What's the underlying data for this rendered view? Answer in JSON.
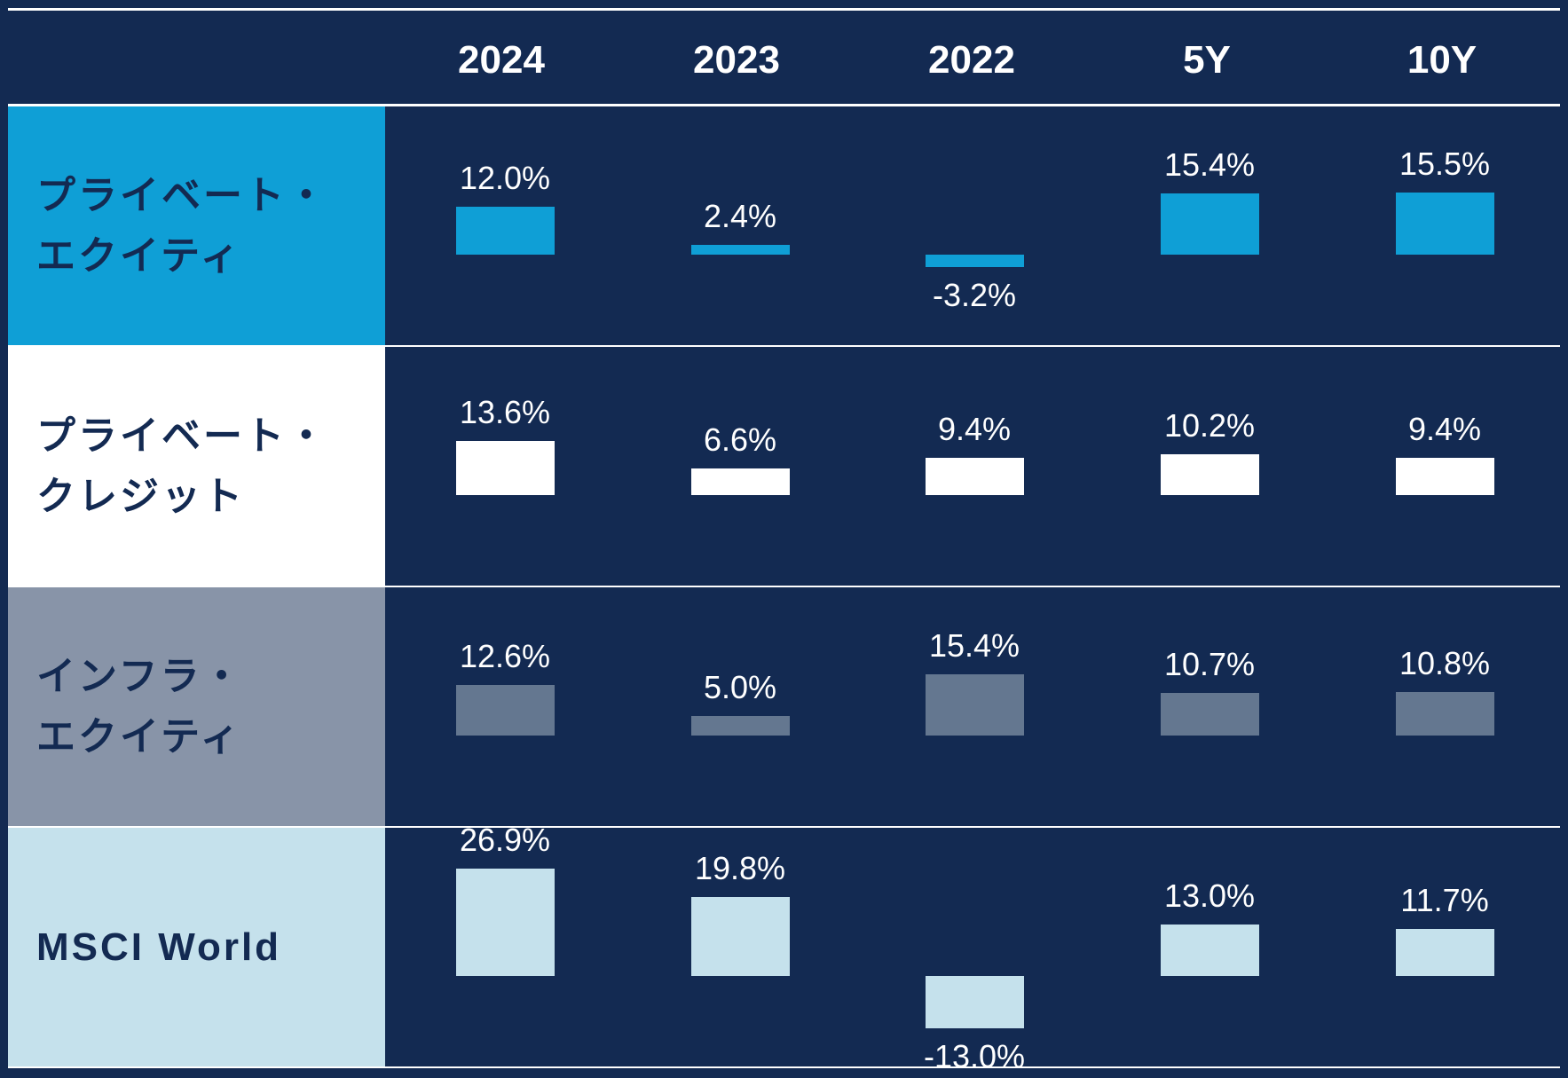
{
  "colors": {
    "background": "#132a52",
    "divider": "#ffffff",
    "label_text_dark": "#132a52",
    "value_text": "#ffffff"
  },
  "chart_data": {
    "type": "bar",
    "title": "",
    "categories": [
      "2024",
      "2023",
      "2022",
      "5Y",
      "10Y"
    ],
    "series": [
      {
        "name": "プライベート・\nエクイティ",
        "values": [
          12.0,
          2.4,
          -3.2,
          15.4,
          15.5
        ],
        "labels": [
          "12.0%",
          "2.4%",
          "-3.2%",
          "15.4%",
          "15.5%"
        ],
        "label_bg": "#0f9fd6",
        "label_color": "#132a52",
        "bar_color": "#0f9fd6"
      },
      {
        "name": "プライベート・\nクレジット",
        "values": [
          13.6,
          6.6,
          9.4,
          10.2,
          9.4
        ],
        "labels": [
          "13.6%",
          "6.6%",
          "9.4%",
          "10.2%",
          "9.4%"
        ],
        "label_bg": "#ffffff",
        "label_color": "#132a52",
        "bar_color": "#ffffff"
      },
      {
        "name": "インフラ・\nエクイティ",
        "values": [
          12.6,
          5.0,
          15.4,
          10.7,
          10.8
        ],
        "labels": [
          "12.6%",
          "5.0%",
          "15.4%",
          "10.7%",
          "10.8%"
        ],
        "label_bg": "#8894a8",
        "label_color": "#132a52",
        "bar_color": "#647790"
      },
      {
        "name": "MSCI World",
        "values": [
          26.9,
          19.8,
          -13.0,
          13.0,
          11.7
        ],
        "labels": [
          "26.9%",
          "19.8%",
          "-13.0%",
          "13.0%",
          "11.7%"
        ],
        "label_bg": "#c5e1ec",
        "label_color": "#132a52",
        "bar_color": "#c5e1ec"
      }
    ],
    "xlabel": "",
    "ylabel": "",
    "grid": false,
    "legend": "none"
  }
}
